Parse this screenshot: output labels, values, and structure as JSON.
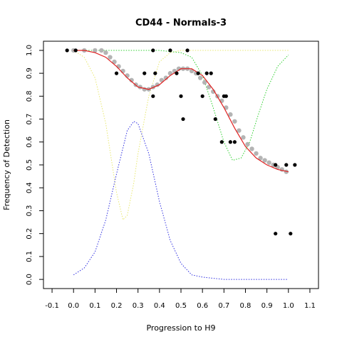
{
  "chart_data": {
    "type": "scatter",
    "title": "CD44 - Normals-3",
    "xlabel": "Progression to H9",
    "ylabel": "Frequency of Detection",
    "xlim": [
      -0.14,
      1.14
    ],
    "ylim": [
      -0.04,
      1.04
    ],
    "x_ticks": [
      -0.1,
      0.0,
      0.1,
      0.2,
      0.3,
      0.4,
      0.5,
      0.6,
      0.7,
      0.8,
      0.9,
      1.0,
      1.1
    ],
    "x_tick_labels": [
      "-0.1",
      "0.0",
      "0.1",
      "0.2",
      "0.3",
      "0.4",
      "0.5",
      "0.6",
      "0.7",
      "0.8",
      "0.9",
      "1.0",
      "1.1"
    ],
    "y_ticks": [
      0.0,
      0.1,
      0.2,
      0.3,
      0.4,
      0.5,
      0.6,
      0.7,
      0.8,
      0.9,
      1.0
    ],
    "y_tick_labels": [
      "0.0",
      "0.1",
      "0.2",
      "0.3",
      "0.4",
      "0.5",
      "0.6",
      "0.7",
      "0.8",
      "0.9",
      "1.0"
    ],
    "grid": false,
    "legend": "none",
    "colors": {
      "observed": "#000000",
      "smoothed": "#b4b4b4",
      "fit": "#e02020",
      "component_yellow": "#e8e870",
      "component_green": "#30d030",
      "component_blue": "#3030e0"
    },
    "series": [
      {
        "role": "observed-points",
        "x": [
          -0.03,
          0.01,
          0.2,
          0.33,
          0.37,
          0.37,
          0.38,
          0.45,
          0.48,
          0.5,
          0.51,
          0.53,
          0.58,
          0.6,
          0.62,
          0.64,
          0.66,
          0.69,
          0.7,
          0.71,
          0.73,
          0.75,
          0.94,
          0.94,
          0.99,
          1.01,
          1.03
        ],
        "y": [
          1.0,
          1.0,
          0.9,
          0.9,
          1.0,
          0.8,
          0.9,
          1.0,
          0.9,
          0.8,
          0.7,
          1.0,
          0.9,
          0.8,
          0.9,
          0.9,
          0.7,
          0.6,
          0.8,
          0.8,
          0.6,
          0.6,
          0.5,
          0.2,
          0.5,
          0.2,
          0.5
        ]
      },
      {
        "role": "smoothed-points",
        "x": [
          0.0,
          0.05,
          0.1,
          0.13,
          0.15,
          0.17,
          0.19,
          0.21,
          0.23,
          0.25,
          0.27,
          0.29,
          0.31,
          0.33,
          0.35,
          0.37,
          0.39,
          0.41,
          0.43,
          0.45,
          0.47,
          0.49,
          0.51,
          0.53,
          0.55,
          0.57,
          0.59,
          0.61,
          0.63,
          0.65,
          0.67,
          0.69,
          0.71,
          0.73,
          0.75,
          0.77,
          0.79,
          0.81,
          0.83,
          0.85,
          0.87,
          0.89,
          0.91,
          0.93,
          0.95,
          0.97,
          0.99
        ],
        "y": [
          1.0,
          1.0,
          1.0,
          1.0,
          0.99,
          0.97,
          0.95,
          0.93,
          0.91,
          0.89,
          0.87,
          0.85,
          0.84,
          0.83,
          0.83,
          0.84,
          0.85,
          0.87,
          0.88,
          0.9,
          0.91,
          0.92,
          0.92,
          0.92,
          0.91,
          0.9,
          0.88,
          0.86,
          0.84,
          0.82,
          0.8,
          0.78,
          0.75,
          0.72,
          0.69,
          0.65,
          0.62,
          0.59,
          0.57,
          0.55,
          0.53,
          0.52,
          0.51,
          0.5,
          0.49,
          0.48,
          0.47
        ]
      },
      {
        "role": "fitted-curve",
        "x": [
          0.0,
          0.05,
          0.1,
          0.15,
          0.2,
          0.25,
          0.3,
          0.35,
          0.4,
          0.45,
          0.5,
          0.55,
          0.6,
          0.65,
          0.7,
          0.75,
          0.8,
          0.85,
          0.9,
          0.95,
          1.0
        ],
        "y": [
          1.0,
          1.0,
          0.99,
          0.97,
          0.93,
          0.88,
          0.84,
          0.83,
          0.85,
          0.89,
          0.92,
          0.92,
          0.89,
          0.83,
          0.75,
          0.66,
          0.58,
          0.53,
          0.5,
          0.48,
          0.47
        ]
      },
      {
        "role": "component-yellow",
        "x": [
          0.0,
          0.05,
          0.1,
          0.15,
          0.2,
          0.23,
          0.25,
          0.28,
          0.3,
          0.35,
          0.4,
          0.45,
          0.5,
          0.6,
          0.7,
          0.8,
          0.9,
          1.0
        ],
        "y": [
          1.0,
          0.97,
          0.88,
          0.68,
          0.38,
          0.26,
          0.28,
          0.42,
          0.55,
          0.8,
          0.95,
          0.99,
          1.0,
          1.0,
          1.0,
          1.0,
          1.0,
          1.0
        ]
      },
      {
        "role": "component-green",
        "x": [
          0.0,
          0.1,
          0.2,
          0.3,
          0.4,
          0.5,
          0.55,
          0.6,
          0.65,
          0.7,
          0.74,
          0.78,
          0.82,
          0.86,
          0.9,
          0.95,
          1.0
        ],
        "y": [
          1.0,
          1.0,
          1.0,
          1.0,
          1.0,
          0.99,
          0.97,
          0.89,
          0.75,
          0.6,
          0.52,
          0.53,
          0.6,
          0.72,
          0.83,
          0.93,
          0.98
        ]
      },
      {
        "role": "component-blue",
        "x": [
          0.0,
          0.05,
          0.1,
          0.15,
          0.2,
          0.25,
          0.28,
          0.3,
          0.35,
          0.4,
          0.45,
          0.5,
          0.55,
          0.6,
          0.7,
          0.8,
          0.9,
          1.0
        ],
        "y": [
          0.02,
          0.05,
          0.12,
          0.26,
          0.46,
          0.65,
          0.69,
          0.68,
          0.55,
          0.34,
          0.17,
          0.07,
          0.02,
          0.01,
          0.0,
          0.0,
          0.0,
          0.0
        ]
      }
    ]
  }
}
